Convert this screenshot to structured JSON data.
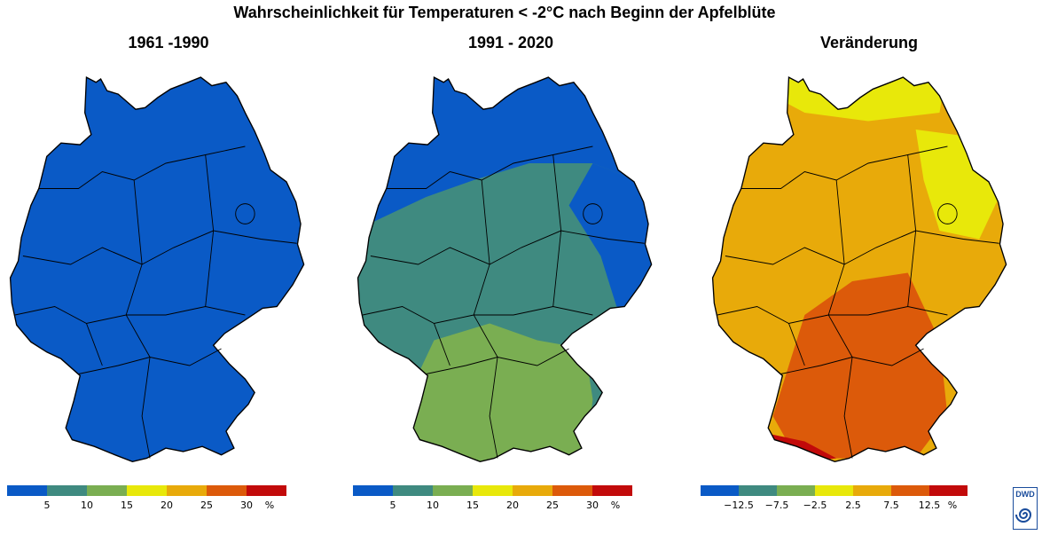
{
  "title": "Wahrscheinlichkeit für Temperaturen < -2°C nach Beginn der Apfelblüte",
  "panels": [
    {
      "title": "1961 -1990",
      "legend": {
        "colors": [
          "#0a5ac6",
          "#3f8a80",
          "#7aae52",
          "#e8e80a",
          "#e8aa0a",
          "#dc5a0a",
          "#c20a0a"
        ],
        "labels": [
          "5",
          "10",
          "15",
          "20",
          "25",
          "30",
          "%"
        ]
      }
    },
    {
      "title": "1991 - 2020",
      "legend": {
        "colors": [
          "#0a5ac6",
          "#3f8a80",
          "#7aae52",
          "#e8e80a",
          "#e8aa0a",
          "#dc5a0a",
          "#c20a0a"
        ],
        "labels": [
          "5",
          "10",
          "15",
          "20",
          "25",
          "30",
          "%"
        ]
      }
    },
    {
      "title": "Veränderung",
      "legend": {
        "colors": [
          "#0a5ac6",
          "#3f8a80",
          "#7aae52",
          "#e8e80a",
          "#e8aa0a",
          "#dc5a0a",
          "#c20a0a"
        ],
        "labels": [
          "−12.5",
          "−7.5",
          "−2.5",
          "2.5",
          "7.5",
          "12.5",
          "%"
        ]
      }
    }
  ],
  "logo_text": "DWD"
}
